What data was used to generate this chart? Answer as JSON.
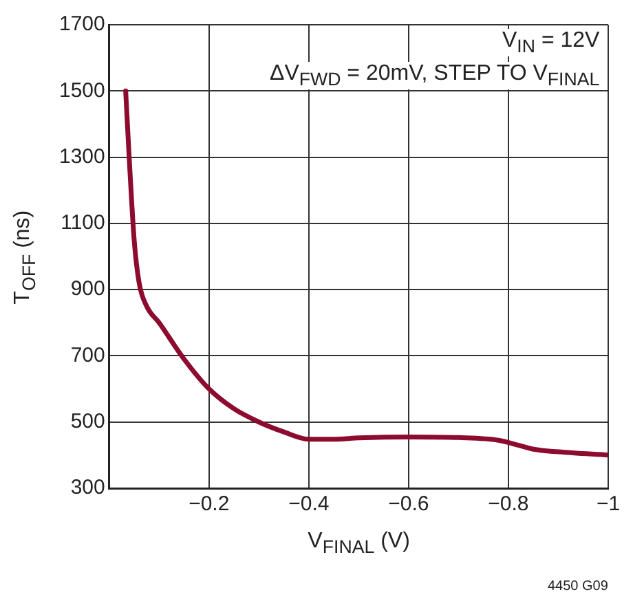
{
  "chart_data": {
    "type": "line",
    "xlabel": "V$_{FINAL}$ (V)",
    "ylabel": "T$_{OFF}$ (ns)",
    "annotations": [
      "V$_{IN}$ = 12V",
      "ΔV$_{FWD}$ = 20mV, STEP TO V$_{FINAL}$",
      "4450 G09"
    ],
    "xlim": [
      0,
      -1
    ],
    "xticks": [
      {
        "value": 0,
        "label": null
      },
      -0.2,
      -0.4,
      -0.6,
      -0.8,
      -1
    ],
    "ylim": [
      300,
      1700
    ],
    "yticks": [
      300,
      500,
      700,
      900,
      1100,
      1300,
      1500,
      1700
    ],
    "grid": true,
    "legend": false,
    "marker": "none",
    "line_style": "solid",
    "series": [
      {
        "color": "#8c0b2e",
        "x": [
          -0.033,
          -0.04,
          -0.05,
          -0.06,
          -0.075,
          -0.1,
          -0.15,
          -0.2,
          -0.25,
          -0.3,
          -0.35,
          -0.4,
          -0.45,
          -0.5,
          -0.6,
          -0.7,
          -0.78,
          -0.82,
          -0.85,
          -0.9,
          -1
        ],
        "values": [
          1500,
          1300,
          1050,
          920,
          850,
          800,
          690,
          600,
          540,
          500,
          470,
          448,
          448,
          452,
          455,
          453,
          445,
          430,
          418,
          410,
          400
        ]
      }
    ]
  }
}
